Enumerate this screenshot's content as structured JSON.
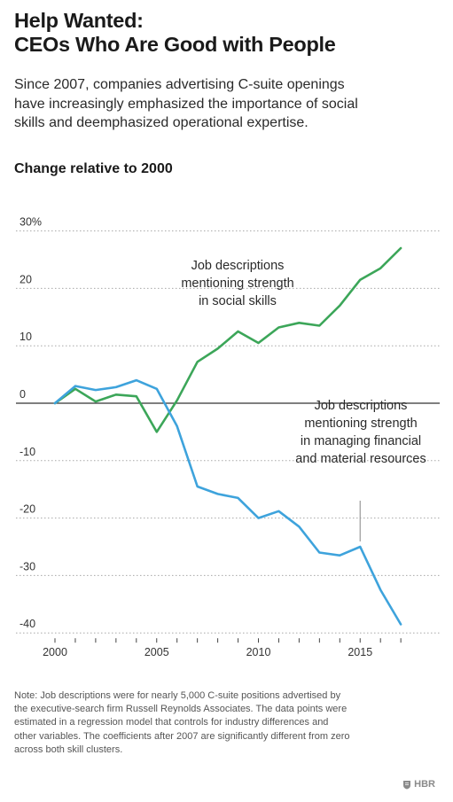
{
  "title_lines": [
    "Help Wanted:",
    "CEOs Who Are Good with People"
  ],
  "subtitle_lines": [
    "Since 2007, companies advertising C-suite openings",
    "have increasingly emphasized the importance of social",
    "skills and deemphasized operational expertise."
  ],
  "chart_heading": "Change relative to 2000",
  "chart_data": {
    "type": "line",
    "x": [
      2000,
      2001,
      2002,
      2003,
      2004,
      2005,
      2006,
      2007,
      2008,
      2009,
      2010,
      2011,
      2012,
      2013,
      2014,
      2015,
      2016,
      2017
    ],
    "series": [
      {
        "key": "social",
        "label_lines": [
          "Job descriptions",
          "mentioning strength",
          "in social skills"
        ],
        "color": "#3ca659",
        "values": [
          0,
          2.5,
          0.3,
          1.5,
          1.2,
          -5.0,
          0.5,
          7.2,
          9.5,
          12.5,
          10.5,
          13.2,
          14.0,
          13.5,
          17.0,
          21.5,
          23.5,
          27.0
        ]
      },
      {
        "key": "financial",
        "label_lines": [
          "Job descriptions",
          "mentioning strength",
          "in managing financial",
          "and material resources"
        ],
        "color": "#3ea3dc",
        "values": [
          0,
          3.0,
          2.3,
          2.8,
          4.0,
          2.5,
          -4.0,
          -14.5,
          -15.8,
          -16.5,
          -20.0,
          -18.8,
          -21.5,
          -26.0,
          -26.5,
          -25.0,
          -32.5,
          -38.5
        ]
      }
    ],
    "y_ticks": [
      "30%",
      "20",
      "10",
      "0",
      "-10",
      "-20",
      "-30",
      "-40"
    ],
    "y_tick_values": [
      30,
      20,
      10,
      0,
      -10,
      -20,
      -30,
      -40
    ],
    "x_ticks": [
      2000,
      2005,
      2010,
      2015
    ],
    "xlim": [
      2000,
      2017
    ],
    "ylim": [
      -40,
      30
    ],
    "grid": "dotted horizontal"
  },
  "note_lines": [
    "Note: Job descriptions were for nearly 5,000 C-suite positions advertised by",
    "the executive-search firm Russell Reynolds Associates. The data points were",
    "estimated in a regression model that controls for industry differences and",
    "other variables. The coefficients after 2007 are significantly different from zero",
    "across both skill clusters."
  ],
  "logo_text": "HBR"
}
